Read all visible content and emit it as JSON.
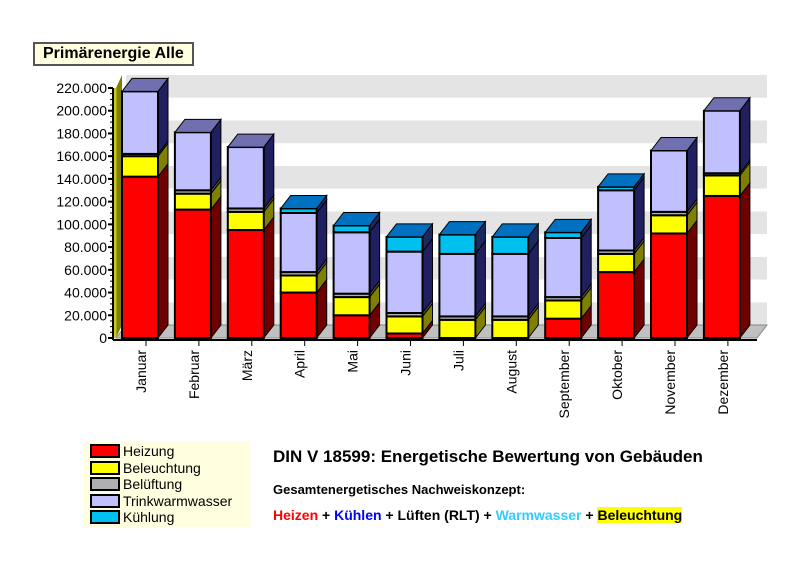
{
  "chart_data": {
    "type": "bar",
    "stacked": true,
    "three_d": true,
    "title": "Primärenergie Alle",
    "categories": [
      "Januar",
      "Februar",
      "März",
      "April",
      "Mai",
      "Juni",
      "Juli",
      "August",
      "September",
      "Oktober",
      "November",
      "Dezember"
    ],
    "ylim": [
      0,
      220000
    ],
    "yticks": [
      "0",
      "20.000",
      "40.000",
      "60.000",
      "80.000",
      "100.000",
      "120.000",
      "140.000",
      "160.000",
      "180.000",
      "200.000",
      "220.000"
    ],
    "grid": true,
    "legend_position": "bottom-left",
    "series": [
      {
        "name": "Heizung",
        "color": "#ff0000",
        "values": [
          142000,
          113000,
          95000,
          40000,
          20000,
          4000,
          0,
          0,
          17000,
          58000,
          92000,
          125000
        ]
      },
      {
        "name": "Beleuchtung",
        "color": "#ffff00",
        "values": [
          18000,
          14000,
          16000,
          15000,
          16000,
          15000,
          16000,
          16000,
          16000,
          16000,
          16000,
          18000
        ]
      },
      {
        "name": "Belüftung",
        "color": "#b0b0b0",
        "values": [
          2000,
          3000,
          3000,
          3000,
          3000,
          3000,
          3000,
          3000,
          3000,
          3000,
          3000,
          2000
        ]
      },
      {
        "name": "Trinkwarmwasser",
        "color": "#c0c0ff",
        "values": [
          55000,
          51000,
          54000,
          52000,
          54000,
          54000,
          55000,
          55000,
          52000,
          53000,
          54000,
          55000
        ]
      },
      {
        "name": "Kühlung",
        "color": "#00c0f0",
        "values": [
          0,
          0,
          0,
          4000,
          6000,
          13000,
          17000,
          15000,
          5000,
          3000,
          0,
          0
        ]
      }
    ]
  },
  "footer": {
    "heading": "DIN V 18599: Energetische Bewertung von Gebäuden",
    "subheading": "Gesamtenergetisches Nachweiskonzept:",
    "formula": [
      {
        "text": "Heizen",
        "color": "#ff0000",
        "highlight": ""
      },
      {
        "text": " + ",
        "color": "#000000",
        "highlight": ""
      },
      {
        "text": "Kühlen",
        "color": "#0000ff",
        "highlight": ""
      },
      {
        "text": " + Lüften (RLT) + ",
        "color": "#000000",
        "highlight": ""
      },
      {
        "text": "Warmwasser",
        "color": "#33ccff",
        "highlight": ""
      },
      {
        "text": " + ",
        "color": "#000000",
        "highlight": ""
      },
      {
        "text": "Beleuchtung",
        "color": "#000000",
        "highlight": "#ffff00"
      }
    ]
  }
}
